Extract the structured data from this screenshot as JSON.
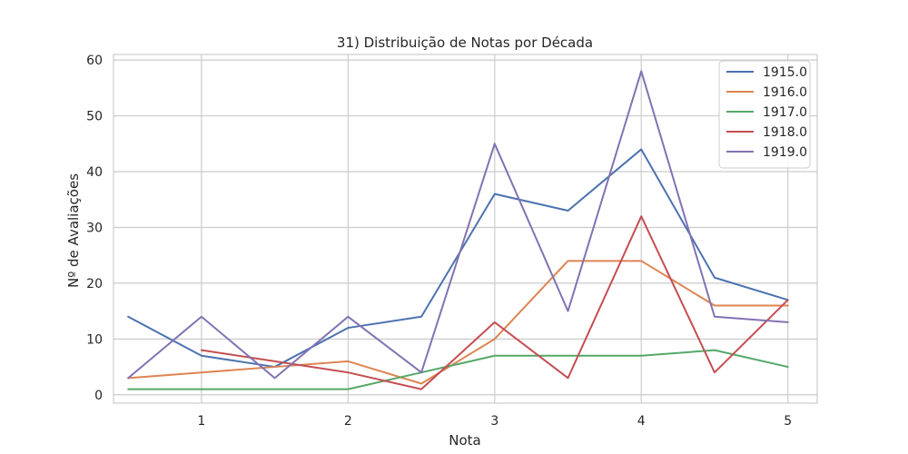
{
  "chart_data": {
    "type": "line",
    "title": "31) Distribuição de Notas por Década",
    "xlabel": "Nota",
    "ylabel": "Nº de Avaliações",
    "x": [
      0.5,
      1,
      1.5,
      2,
      2.5,
      3,
      3.5,
      4,
      4.5,
      5
    ],
    "xticks": [
      1,
      2,
      3,
      4,
      5
    ],
    "yticks": [
      0,
      10,
      20,
      30,
      40,
      50,
      60
    ],
    "xlim": [
      0.4,
      5.2
    ],
    "ylim": [
      -1.5,
      61
    ],
    "grid": true,
    "legend_position": "top-right",
    "series": [
      {
        "name": "1915.0",
        "color": "#4c72b0",
        "values": [
          14,
          7,
          5,
          12,
          14,
          36,
          33,
          44,
          21,
          17
        ]
      },
      {
        "name": "1916.0",
        "color": "#dd8452",
        "values": [
          3,
          4,
          5,
          6,
          2,
          10,
          24,
          24,
          16,
          16
        ]
      },
      {
        "name": "1917.0",
        "color": "#55a868",
        "values": [
          1,
          1,
          1,
          1,
          4,
          7,
          7,
          7,
          8,
          5
        ]
      },
      {
        "name": "1918.0",
        "color": "#c44e52",
        "values": [
          null,
          8,
          6,
          4,
          1,
          13,
          3,
          32,
          4,
          17
        ]
      },
      {
        "name": "1919.0",
        "color": "#8172b3",
        "values": [
          3,
          14,
          3,
          14,
          4,
          45,
          15,
          58,
          14,
          13
        ]
      }
    ]
  }
}
